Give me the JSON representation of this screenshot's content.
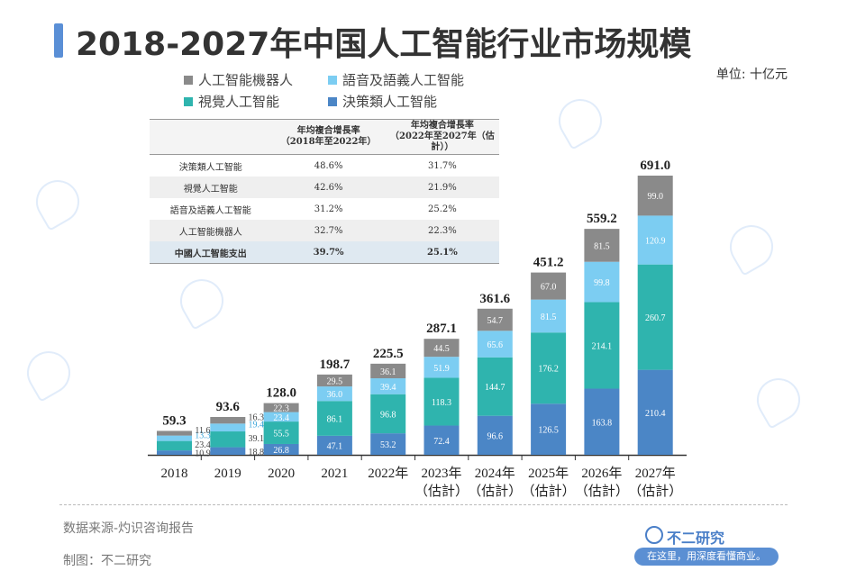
{
  "title": "2018-2027年中国人工智能行业市场规模",
  "unit": "单位: 十亿元",
  "legend": [
    {
      "label": "人工智能機器人",
      "color": "#8a8a8a"
    },
    {
      "label": "語音及語義人工智能",
      "color": "#7ccdf2"
    },
    {
      "label": "視覺人工智能",
      "color": "#2fb4ae"
    },
    {
      "label": "決策類人工智能",
      "color": "#4b86c6"
    }
  ],
  "growth_table": {
    "headers": [
      "",
      "年均複合增長率\n（2018年至2022年）",
      "年均複合增長率\n（2022年至2027年（估計））"
    ],
    "rows": [
      {
        "name": "決策類人工智能",
        "a": "48.6%",
        "b": "31.7%"
      },
      {
        "name": "視覺人工智能",
        "a": "42.6%",
        "b": "21.9%"
      },
      {
        "name": "語音及語義人工智能",
        "a": "31.2%",
        "b": "25.2%"
      },
      {
        "name": "人工智能機器人",
        "a": "32.7%",
        "b": "22.3%"
      },
      {
        "name": "中國人工智能支出",
        "a": "39.7%",
        "b": "25.1%"
      }
    ]
  },
  "chart_data": {
    "type": "bar",
    "stacked": true,
    "categories": [
      "2018",
      "2019",
      "2020",
      "2021",
      "2022年",
      "2023年\n（估計）",
      "2024年\n（估計）",
      "2025年\n（估計）",
      "2026年\n（估計）",
      "2027年\n（估計）"
    ],
    "series": [
      {
        "name": "決策類人工智能",
        "color": "#4b86c6",
        "values": [
          10.9,
          18.8,
          26.8,
          47.1,
          53.2,
          72.4,
          96.6,
          126.5,
          163.8,
          210.4
        ],
        "labels": [
          "10.9",
          "18.8",
          "26.8",
          "47.1",
          "53.2",
          "72.4",
          "96.6",
          "126.5",
          "163.8",
          "210.4"
        ]
      },
      {
        "name": "視覺人工智能",
        "color": "#2fb4ae",
        "values": [
          23.4,
          39.1,
          55.5,
          86.1,
          96.8,
          118.3,
          144.7,
          176.2,
          214.1,
          260.7
        ],
        "labels": [
          "23.4",
          "39.1",
          "55.5",
          "86.1",
          "96.8",
          "118.3",
          "144.7",
          "176.2",
          "214.1",
          "260.7"
        ]
      },
      {
        "name": "語音及語義人工智能",
        "color": "#7ccdf2",
        "values": [
          13.3,
          19.4,
          23.4,
          36.0,
          39.4,
          51.9,
          65.6,
          81.5,
          99.8,
          120.9
        ],
        "labels": [
          "13.3",
          "19.4",
          "23.4",
          "36.0",
          "39.4",
          "51.9",
          "65.6",
          "81.5",
          "99.8",
          "120.9"
        ]
      },
      {
        "name": "人工智能機器人",
        "color": "#8a8a8a",
        "values": [
          11.6,
          16.3,
          22.3,
          29.5,
          36.1,
          44.5,
          54.7,
          67.0,
          81.5,
          99.0
        ],
        "labels": [
          "11.6",
          "16.3",
          "22.3",
          "29.5",
          "36.1",
          "44.5",
          "54.7",
          "67.0",
          "81.5",
          "99.0"
        ]
      }
    ],
    "totals": [
      "59.3",
      "93.6",
      "128.0",
      "198.7",
      "225.5",
      "287.1",
      "361.6",
      "451.2",
      "559.2",
      "691.0"
    ]
  },
  "footer": {
    "source": "数据来源-灼识咨询报告",
    "maker": "制图：不二研究",
    "brand_name": "不二研究",
    "brand_slogan": "在这里，用深度看懂商业。"
  }
}
